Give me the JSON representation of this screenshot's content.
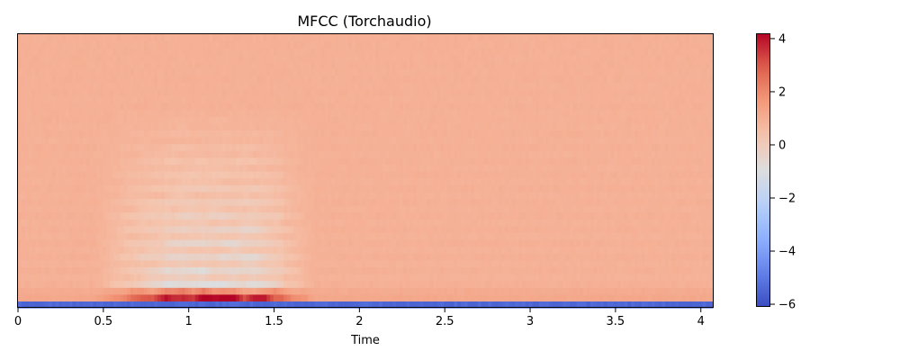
{
  "chart_data": {
    "type": "heatmap",
    "title": "MFCC (Torchaudio)",
    "xlabel": "Time",
    "ylabel": "",
    "xlim": [
      0,
      4.07
    ],
    "x_ticks": [
      0,
      0.5,
      1,
      1.5,
      2,
      2.5,
      3,
      3.5,
      4
    ],
    "x_tick_labels": [
      "0",
      "0.5",
      "1",
      "1.5",
      "2",
      "2.5",
      "3",
      "3.5",
      "4"
    ],
    "n_coefficients": 40,
    "n_frames": 204,
    "colormap": "coolwarm",
    "color_range": [
      -6.1,
      4.2
    ],
    "colorbar_ticks": [
      4,
      2,
      0,
      -2,
      -4,
      -6
    ],
    "colorbar_tick_labels": [
      "4",
      "2",
      "0",
      "−2",
      "−4",
      "−6"
    ],
    "baseline_value": 0.95,
    "coefficient_0_value": -5.3,
    "speech_region": {
      "start": 0.45,
      "end": 1.75,
      "peak": [
        0.85,
        1.55
      ]
    }
  }
}
